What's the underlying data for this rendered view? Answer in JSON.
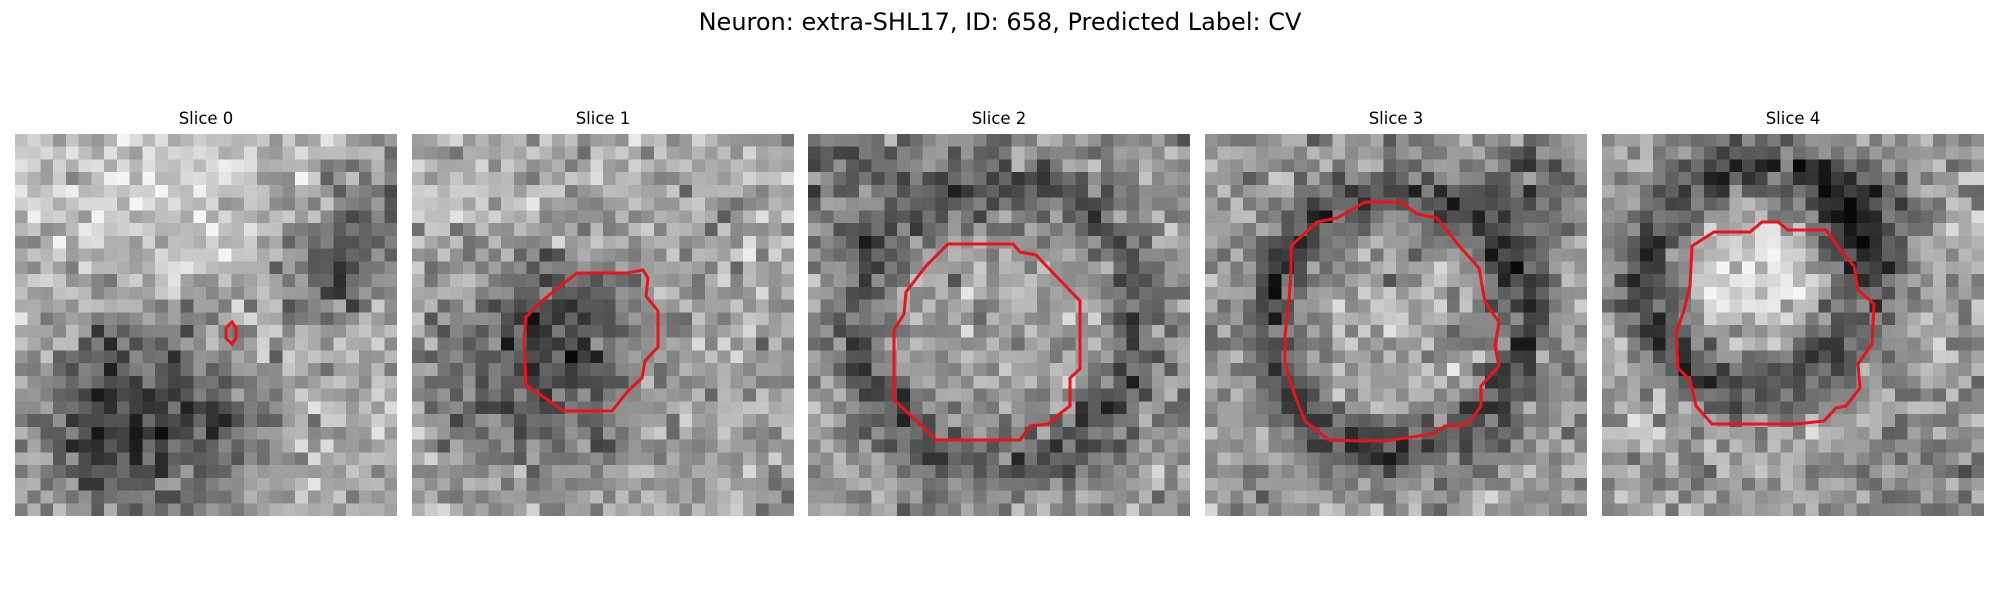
{
  "figure": {
    "title": "Neuron: extra-SHL17, ID: 658, Predicted Label: CV",
    "contour_color": "#e8141a",
    "colormap": "grayscale",
    "grid_size": 30
  },
  "panels": [
    {
      "title": "Slice 0"
    },
    {
      "title": "Slice 1"
    },
    {
      "title": "Slice 2"
    },
    {
      "title": "Slice 3"
    },
    {
      "title": "Slice 4"
    }
  ]
}
